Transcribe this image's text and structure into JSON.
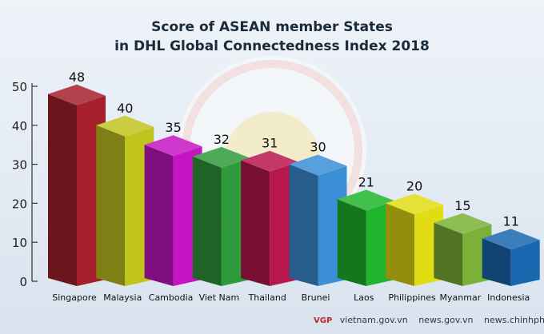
{
  "chart_data": {
    "type": "bar",
    "title": "Score of ASEAN member States",
    "subtitle": "in DHL Global Connectedness Index 2018",
    "categories": [
      "Singapore",
      "Malaysia",
      "Cambodia",
      "Viet Nam",
      "Thailand",
      "Brunei",
      "Laos",
      "Philippines",
      "Myanmar",
      "Indonesia"
    ],
    "values": [
      48,
      40,
      35,
      32,
      31,
      30,
      21,
      20,
      15,
      11
    ],
    "colors": [
      "#a5202b",
      "#c2c41e",
      "#c515c3",
      "#2f9a3a",
      "#b8164c",
      "#3a8fd6",
      "#1fb52c",
      "#e2dc12",
      "#7bb137",
      "#1a67b0"
    ],
    "yticks": [
      0,
      10,
      20,
      30,
      40,
      50
    ],
    "ylim": [
      0,
      50
    ],
    "xlabel": "",
    "ylabel": "",
    "grid": false
  },
  "footer": {
    "logo": "VGP",
    "sources": [
      "vietnam.gov.vn",
      "news.gov.vn",
      "news.chinhphu.vn"
    ]
  }
}
